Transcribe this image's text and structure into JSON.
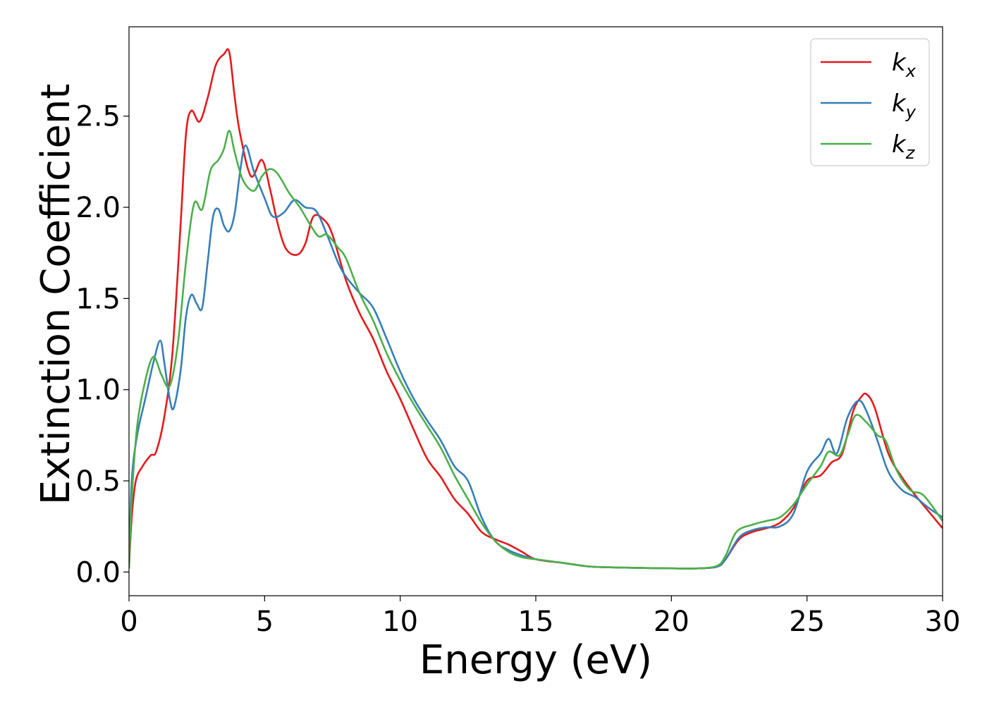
{
  "chart_data": {
    "type": "line",
    "title": "",
    "xlabel": "Energy (eV)",
    "ylabel": "Extinction Coefficient",
    "xlim": [
      0,
      30
    ],
    "ylim": [
      -0.13,
      2.99
    ],
    "xticks": [
      0,
      5,
      10,
      15,
      20,
      25,
      30
    ],
    "xtick_labels": [
      "0",
      "5",
      "10",
      "15",
      "20",
      "25",
      "30"
    ],
    "yticks": [
      0.0,
      0.5,
      1.0,
      1.5,
      2.0,
      2.5
    ],
    "ytick_labels": [
      "0.0",
      "0.5",
      "1.0",
      "1.5",
      "2.0",
      "2.5"
    ],
    "grid": false,
    "legend_position": "top-right",
    "series": [
      {
        "name": "k_x",
        "label_main": "k",
        "label_sub": "x",
        "color": "#e41a1c",
        "points": [
          [
            0,
            0.02
          ],
          [
            0.1,
            0.3
          ],
          [
            0.25,
            0.5
          ],
          [
            0.5,
            0.58
          ],
          [
            0.8,
            0.64
          ],
          [
            1.0,
            0.66
          ],
          [
            1.3,
            0.85
          ],
          [
            1.6,
            1.2
          ],
          [
            1.9,
            1.9
          ],
          [
            2.1,
            2.4
          ],
          [
            2.3,
            2.53
          ],
          [
            2.6,
            2.47
          ],
          [
            2.9,
            2.6
          ],
          [
            3.2,
            2.78
          ],
          [
            3.5,
            2.84
          ],
          [
            3.7,
            2.85
          ],
          [
            3.9,
            2.6
          ],
          [
            4.1,
            2.4
          ],
          [
            4.5,
            2.17
          ],
          [
            4.9,
            2.26
          ],
          [
            5.2,
            2.1
          ],
          [
            5.5,
            1.9
          ],
          [
            5.8,
            1.77
          ],
          [
            6.2,
            1.74
          ],
          [
            6.5,
            1.8
          ],
          [
            6.8,
            1.95
          ],
          [
            7.2,
            1.93
          ],
          [
            7.5,
            1.85
          ],
          [
            8.0,
            1.6
          ],
          [
            8.5,
            1.42
          ],
          [
            9.0,
            1.28
          ],
          [
            9.5,
            1.1
          ],
          [
            10.0,
            0.95
          ],
          [
            10.5,
            0.78
          ],
          [
            11.0,
            0.62
          ],
          [
            11.5,
            0.52
          ],
          [
            12.0,
            0.4
          ],
          [
            12.5,
            0.32
          ],
          [
            13.0,
            0.22
          ],
          [
            13.5,
            0.18
          ],
          [
            14.0,
            0.15
          ],
          [
            14.5,
            0.11
          ],
          [
            15.0,
            0.07
          ],
          [
            16,
            0.05
          ],
          [
            17,
            0.03
          ],
          [
            18,
            0.025
          ],
          [
            19,
            0.022
          ],
          [
            20,
            0.02
          ],
          [
            21,
            0.02
          ],
          [
            21.7,
            0.03
          ],
          [
            22.0,
            0.07
          ],
          [
            22.5,
            0.18
          ],
          [
            23.0,
            0.22
          ],
          [
            23.5,
            0.24
          ],
          [
            24.0,
            0.27
          ],
          [
            24.5,
            0.35
          ],
          [
            25.0,
            0.5
          ],
          [
            25.5,
            0.53
          ],
          [
            25.9,
            0.6
          ],
          [
            26.3,
            0.65
          ],
          [
            26.7,
            0.88
          ],
          [
            27.0,
            0.96
          ],
          [
            27.2,
            0.975
          ],
          [
            27.5,
            0.9
          ],
          [
            28.0,
            0.65
          ],
          [
            28.5,
            0.52
          ],
          [
            29.0,
            0.42
          ],
          [
            29.5,
            0.33
          ],
          [
            30.0,
            0.24
          ]
        ]
      },
      {
        "name": "k_y",
        "label_main": "k",
        "label_sub": "y",
        "color": "#377eb8",
        "points": [
          [
            0,
            0.02
          ],
          [
            0.1,
            0.5
          ],
          [
            0.3,
            0.75
          ],
          [
            0.6,
            0.95
          ],
          [
            0.9,
            1.15
          ],
          [
            1.15,
            1.27
          ],
          [
            1.3,
            1.15
          ],
          [
            1.5,
            0.95
          ],
          [
            1.65,
            0.9
          ],
          [
            1.9,
            1.1
          ],
          [
            2.1,
            1.4
          ],
          [
            2.3,
            1.52
          ],
          [
            2.5,
            1.47
          ],
          [
            2.7,
            1.45
          ],
          [
            2.9,
            1.7
          ],
          [
            3.1,
            1.95
          ],
          [
            3.3,
            1.99
          ],
          [
            3.5,
            1.9
          ],
          [
            3.7,
            1.87
          ],
          [
            3.9,
            1.97
          ],
          [
            4.1,
            2.2
          ],
          [
            4.3,
            2.34
          ],
          [
            4.6,
            2.2
          ],
          [
            5.0,
            2.05
          ],
          [
            5.3,
            1.95
          ],
          [
            5.7,
            1.97
          ],
          [
            6.1,
            2.04
          ],
          [
            6.5,
            2.0
          ],
          [
            6.9,
            1.98
          ],
          [
            7.3,
            1.85
          ],
          [
            7.7,
            1.7
          ],
          [
            8.0,
            1.62
          ],
          [
            8.5,
            1.53
          ],
          [
            9.0,
            1.45
          ],
          [
            9.5,
            1.28
          ],
          [
            10.0,
            1.1
          ],
          [
            10.5,
            0.95
          ],
          [
            11.0,
            0.83
          ],
          [
            11.5,
            0.72
          ],
          [
            12.0,
            0.58
          ],
          [
            12.5,
            0.5
          ],
          [
            13.0,
            0.3
          ],
          [
            13.5,
            0.17
          ],
          [
            14.0,
            0.12
          ],
          [
            14.5,
            0.09
          ],
          [
            15.0,
            0.07
          ],
          [
            16,
            0.05
          ],
          [
            17,
            0.03
          ],
          [
            18,
            0.025
          ],
          [
            19,
            0.022
          ],
          [
            20,
            0.02
          ],
          [
            21,
            0.02
          ],
          [
            21.7,
            0.03
          ],
          [
            22.0,
            0.07
          ],
          [
            22.5,
            0.19
          ],
          [
            23.0,
            0.23
          ],
          [
            23.5,
            0.245
          ],
          [
            24.0,
            0.25
          ],
          [
            24.5,
            0.32
          ],
          [
            25.0,
            0.55
          ],
          [
            25.5,
            0.65
          ],
          [
            25.8,
            0.73
          ],
          [
            26.1,
            0.65
          ],
          [
            26.5,
            0.85
          ],
          [
            26.9,
            0.94
          ],
          [
            27.2,
            0.88
          ],
          [
            27.6,
            0.72
          ],
          [
            28.0,
            0.55
          ],
          [
            28.5,
            0.45
          ],
          [
            29.0,
            0.41
          ],
          [
            29.5,
            0.35
          ],
          [
            30.0,
            0.3
          ]
        ]
      },
      {
        "name": "k_z",
        "label_main": "k",
        "label_sub": "z",
        "color": "#4daf4a",
        "points": [
          [
            0,
            0.02
          ],
          [
            0.1,
            0.4
          ],
          [
            0.3,
            0.8
          ],
          [
            0.6,
            1.05
          ],
          [
            0.9,
            1.18
          ],
          [
            1.2,
            1.08
          ],
          [
            1.5,
            1.02
          ],
          [
            1.8,
            1.25
          ],
          [
            2.1,
            1.7
          ],
          [
            2.4,
            2.02
          ],
          [
            2.7,
            1.99
          ],
          [
            3.0,
            2.2
          ],
          [
            3.3,
            2.26
          ],
          [
            3.5,
            2.32
          ],
          [
            3.7,
            2.42
          ],
          [
            3.9,
            2.3
          ],
          [
            4.2,
            2.15
          ],
          [
            4.6,
            2.09
          ],
          [
            4.9,
            2.17
          ],
          [
            5.2,
            2.21
          ],
          [
            5.5,
            2.18
          ],
          [
            5.9,
            2.08
          ],
          [
            6.3,
            2.0
          ],
          [
            6.7,
            1.9
          ],
          [
            7.0,
            1.84
          ],
          [
            7.3,
            1.85
          ],
          [
            7.7,
            1.78
          ],
          [
            8.0,
            1.72
          ],
          [
            8.5,
            1.53
          ],
          [
            9.0,
            1.38
          ],
          [
            9.5,
            1.2
          ],
          [
            10.0,
            1.05
          ],
          [
            10.5,
            0.92
          ],
          [
            11.0,
            0.8
          ],
          [
            11.5,
            0.68
          ],
          [
            12.0,
            0.53
          ],
          [
            12.5,
            0.4
          ],
          [
            13.0,
            0.27
          ],
          [
            13.5,
            0.17
          ],
          [
            14.0,
            0.11
          ],
          [
            14.5,
            0.08
          ],
          [
            15.0,
            0.07
          ],
          [
            16,
            0.05
          ],
          [
            17,
            0.03
          ],
          [
            18,
            0.025
          ],
          [
            19,
            0.022
          ],
          [
            20,
            0.02
          ],
          [
            21,
            0.02
          ],
          [
            21.7,
            0.035
          ],
          [
            22.0,
            0.09
          ],
          [
            22.4,
            0.22
          ],
          [
            23.0,
            0.26
          ],
          [
            23.5,
            0.28
          ],
          [
            24.0,
            0.3
          ],
          [
            24.5,
            0.37
          ],
          [
            25.0,
            0.48
          ],
          [
            25.5,
            0.58
          ],
          [
            25.8,
            0.66
          ],
          [
            26.2,
            0.64
          ],
          [
            26.5,
            0.75
          ],
          [
            26.8,
            0.86
          ],
          [
            27.2,
            0.82
          ],
          [
            27.6,
            0.75
          ],
          [
            27.9,
            0.72
          ],
          [
            28.3,
            0.56
          ],
          [
            28.8,
            0.45
          ],
          [
            29.3,
            0.42
          ],
          [
            30.0,
            0.28
          ]
        ]
      }
    ]
  }
}
